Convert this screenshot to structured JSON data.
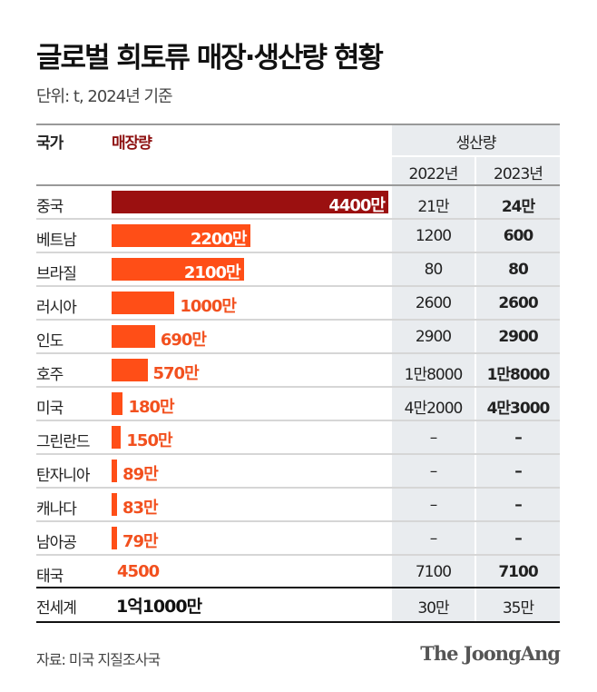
{
  "title": "글로벌 희토류 매장·생산량 현황",
  "subtitle": "단위: t, 2024년 기준",
  "source": "자료: 미국 지질조사국",
  "logo": "The JoongAng",
  "colors": {
    "top_bar": "#9b1010",
    "bar": "#ff4e17",
    "label": "#f2501e",
    "production_bg": "#e9ecef"
  },
  "chart_data": {
    "type": "table",
    "headers": {
      "country": "국가",
      "reserves": "매장량",
      "production": "생산량",
      "years": [
        "2022년",
        "2023년"
      ]
    },
    "rows": [
      {
        "country": "중국",
        "reserves": 44000000,
        "reserves_label": "4400만",
        "p2022": "21만",
        "p2023": "24만"
      },
      {
        "country": "베트남",
        "reserves": 22000000,
        "reserves_label": "2200만",
        "p2022": "1200",
        "p2023": "600"
      },
      {
        "country": "브라질",
        "reserves": 21000000,
        "reserves_label": "2100만",
        "p2022": "80",
        "p2023": "80"
      },
      {
        "country": "러시아",
        "reserves": 10000000,
        "reserves_label": "1000만",
        "p2022": "2600",
        "p2023": "2600"
      },
      {
        "country": "인도",
        "reserves": 6900000,
        "reserves_label": "690만",
        "p2022": "2900",
        "p2023": "2900"
      },
      {
        "country": "호주",
        "reserves": 5700000,
        "reserves_label": "570만",
        "p2022": "1만8000",
        "p2023": "1만8000"
      },
      {
        "country": "미국",
        "reserves": 1800000,
        "reserves_label": "180만",
        "p2022": "4만2000",
        "p2023": "4만3000"
      },
      {
        "country": "그린란드",
        "reserves": 1500000,
        "reserves_label": "150만",
        "p2022": "–",
        "p2023": "–"
      },
      {
        "country": "탄자니아",
        "reserves": 890000,
        "reserves_label": "89만",
        "p2022": "–",
        "p2023": "–"
      },
      {
        "country": "캐나다",
        "reserves": 830000,
        "reserves_label": "83만",
        "p2022": "–",
        "p2023": "–"
      },
      {
        "country": "남아공",
        "reserves": 790000,
        "reserves_label": "79만",
        "p2022": "–",
        "p2023": "–"
      },
      {
        "country": "태국",
        "reserves": 4500,
        "reserves_label": "4500",
        "p2022": "7100",
        "p2023": "7100"
      }
    ],
    "total": {
      "country": "전세계",
      "reserves_label": "1억1000만",
      "p2022": "30만",
      "p2023": "35만"
    }
  }
}
